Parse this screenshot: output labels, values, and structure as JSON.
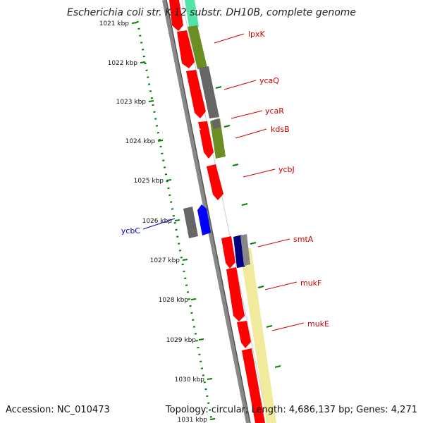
{
  "header": {
    "title": "Escherichia coli str. K-12 substr. DH10B, complete genome"
  },
  "footer": {
    "accession": "Accession: NC_010473",
    "summary": "Topology: circular; Length: 4,686,137 bp; Genes: 4,271"
  },
  "colors": {
    "red": "#ff0000",
    "gray": "#666666",
    "olive": "#6b8e23",
    "blue": "#0000ff",
    "navy": "#000080",
    "teal": "#40e0a0",
    "yellow": "#f0e68c",
    "tick_green": "#008000",
    "label_red": "#cc0000",
    "label_blue": "#0000cc"
  },
  "scale": {
    "tick_labels": [
      "1021 kbp",
      "1022 kbp",
      "1023 kbp",
      "1024 kbp",
      "1025 kbp",
      "1026 kbp",
      "1027 kbp",
      "1028 kbp",
      "1029 kbp",
      "1030 kbp",
      "1031 kbp"
    ]
  },
  "gene_labels": [
    {
      "name": "lpxK",
      "color": "red"
    },
    {
      "name": "ycaQ",
      "color": "red"
    },
    {
      "name": "ycaR",
      "color": "red"
    },
    {
      "name": "kdsB",
      "color": "red"
    },
    {
      "name": "ycbJ",
      "color": "red"
    },
    {
      "name": "ycbC",
      "color": "blue"
    },
    {
      "name": "smtA",
      "color": "red"
    },
    {
      "name": "mukF",
      "color": "red"
    },
    {
      "name": "mukE",
      "color": "red"
    }
  ]
}
